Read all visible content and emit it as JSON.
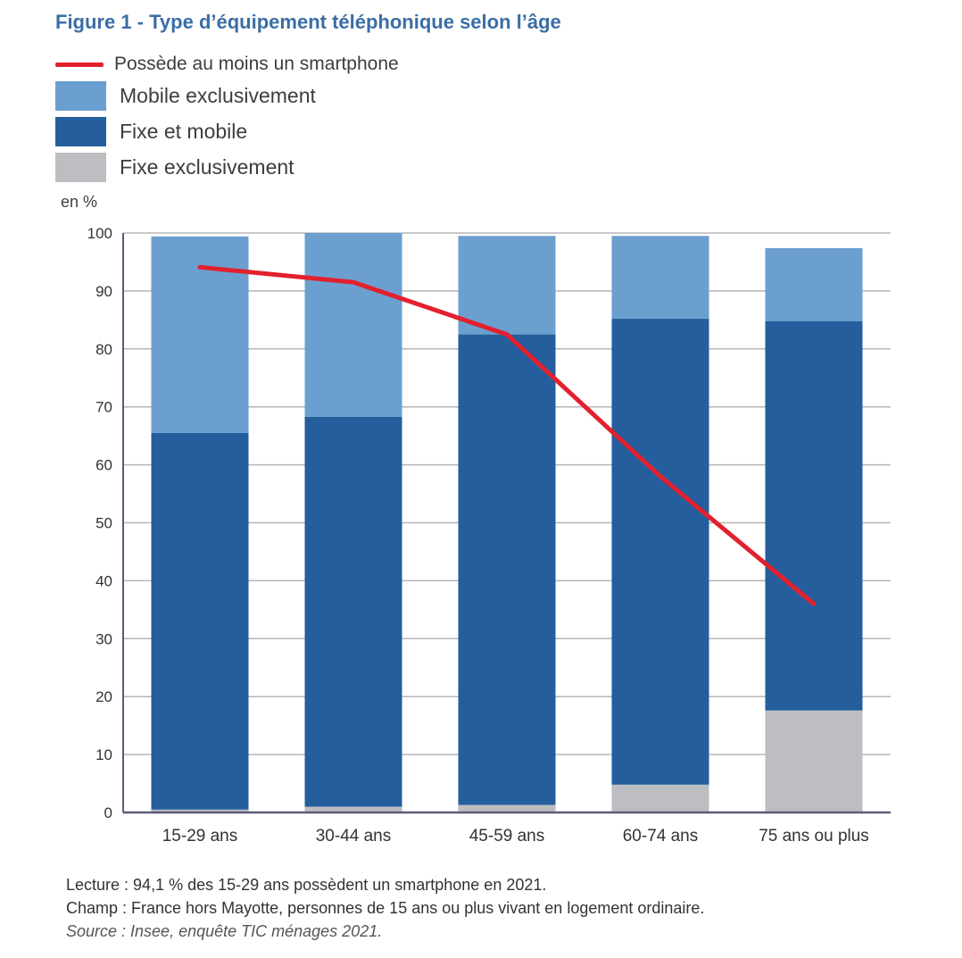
{
  "title": "Figure 1 - Type d’équipement téléphonique selon l’âge",
  "legend": {
    "line_label": "Possède au moins un smartphone",
    "mobile_label": "Mobile exclusivement",
    "fixe_mobile_label": "Fixe et mobile",
    "fixe_label": "Fixe exclusivement"
  },
  "unit_label": "en %",
  "colors": {
    "mobile": "#6b9fd0",
    "fixe_mobile": "#245e9d",
    "fixe": "#bdbec2",
    "line": "#e3202e",
    "grid": "#b6b6b6",
    "axis": "#5b5b7a",
    "title": "#3a6ea5"
  },
  "chart_data": {
    "type": "bar",
    "stacked": true,
    "categories": [
      "15-29 ans",
      "30-44 ans",
      "45-59 ans",
      "60-74 ans",
      "75 ans ou plus"
    ],
    "series": [
      {
        "name": "Fixe exclusivement",
        "values": [
          0.5,
          1.0,
          1.3,
          4.8,
          17.6
        ]
      },
      {
        "name": "Fixe et mobile",
        "values": [
          65.0,
          67.3,
          81.2,
          80.4,
          67.2
        ]
      },
      {
        "name": "Mobile exclusivement",
        "values": [
          33.9,
          31.7,
          17.0,
          14.3,
          12.6
        ]
      }
    ],
    "line": {
      "name": "Possède au moins un smartphone",
      "values": [
        94.1,
        91.5,
        82.5,
        58.0,
        36.0
      ]
    },
    "yticks": [
      0,
      10,
      20,
      30,
      40,
      50,
      60,
      70,
      80,
      90,
      100
    ],
    "ylim": [
      0,
      100
    ],
    "ylabel": "en %",
    "grid": true
  },
  "notes": {
    "lecture": "Lecture : 94,1 % des 15-29 ans possèdent un smartphone en 2021.",
    "champ": "Champ : France hors Mayotte, personnes de 15 ans ou plus vivant en logement ordinaire.",
    "source": "Source : Insee, enquête TIC ménages 2021."
  }
}
